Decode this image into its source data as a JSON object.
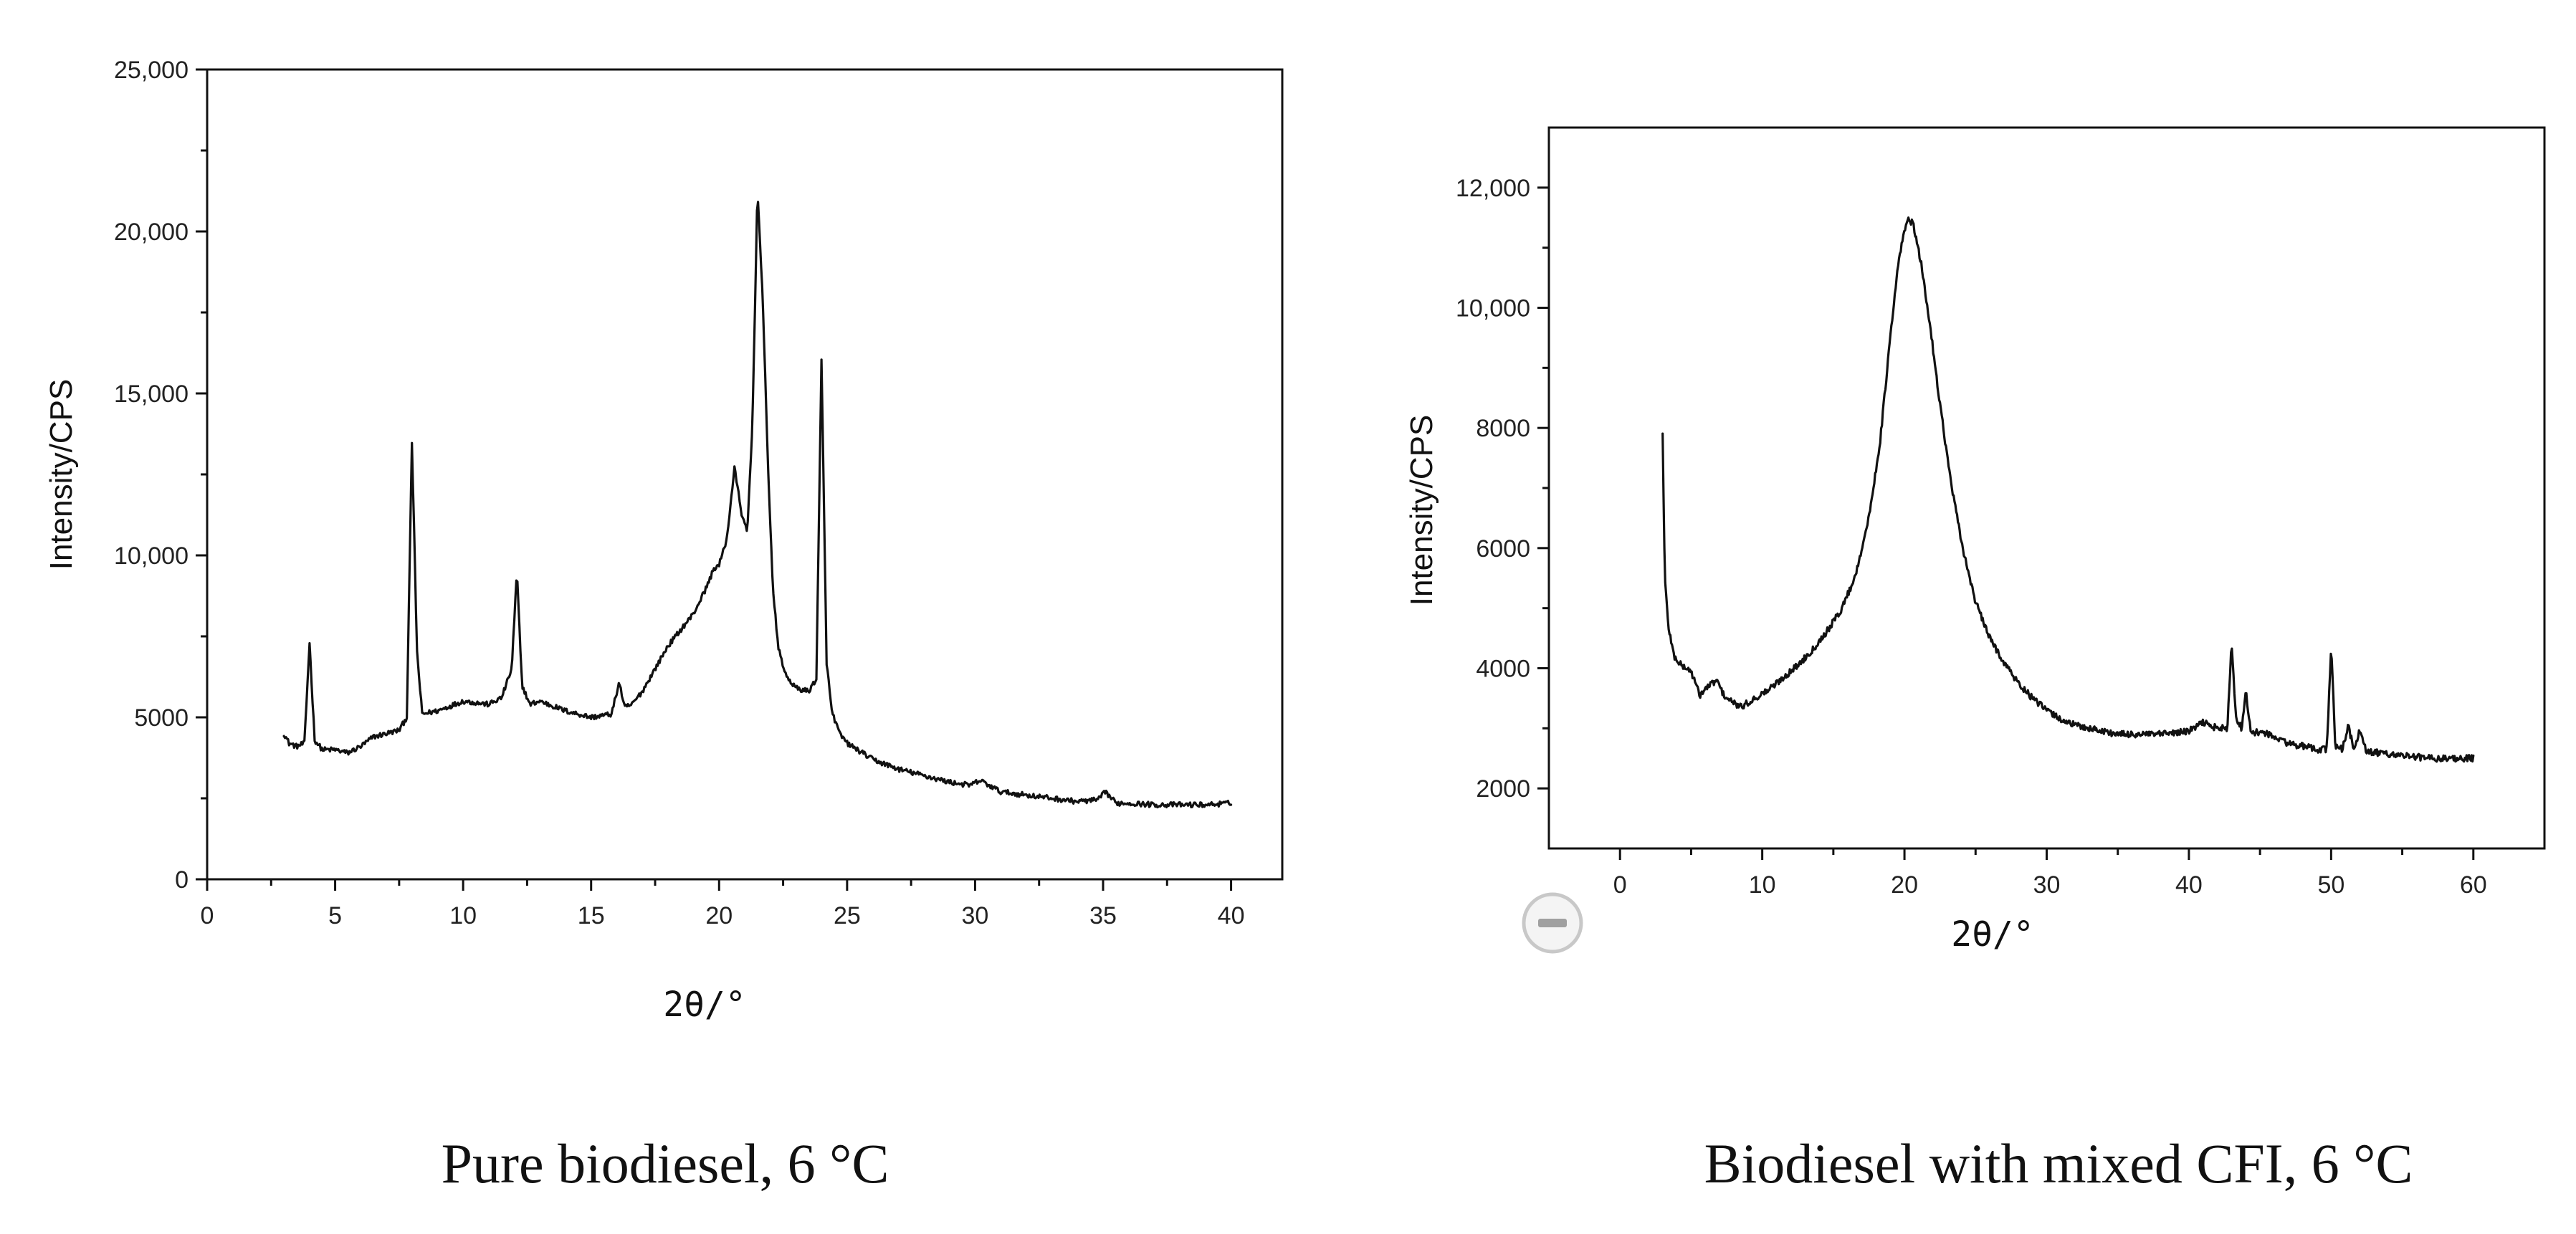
{
  "chart_data": [
    {
      "type": "line",
      "title": "",
      "caption": "Pure biodiesel, 6 °C",
      "xlabel": "2θ/°",
      "ylabel": "Intensity/CPS",
      "xlim": [
        0,
        42
      ],
      "ylim": [
        0,
        25000
      ],
      "xticks": [
        "0",
        "5",
        "10",
        "15",
        "20",
        "25",
        "30",
        "35",
        "40"
      ],
      "xtick_values": [
        0,
        5,
        10,
        15,
        20,
        25,
        30,
        35,
        40
      ],
      "yticks": [
        "0",
        "5000",
        "10,000",
        "15,000",
        "20,000",
        "25,000"
      ],
      "ytick_values": [
        0,
        5000,
        10000,
        15000,
        20000,
        25000
      ],
      "grid": false,
      "legend": "none",
      "series": [
        {
          "name": "Pure biodiesel",
          "x": [
            3,
            3.2,
            3.5,
            3.8,
            4.0,
            4.2,
            4.5,
            5.0,
            5.5,
            6.0,
            6.5,
            7.0,
            7.5,
            7.8,
            8.0,
            8.2,
            8.4,
            9.0,
            10.0,
            11.0,
            11.5,
            11.9,
            12.1,
            12.3,
            12.6,
            13.0,
            14.0,
            15.0,
            15.8,
            16.1,
            16.3,
            16.6,
            17.0,
            17.5,
            18.0,
            18.5,
            19.0,
            19.5,
            19.8,
            20.0,
            20.3,
            20.6,
            20.9,
            21.1,
            21.3,
            21.5,
            21.7,
            21.9,
            22.1,
            22.3,
            22.6,
            23.0,
            23.5,
            23.8,
            24.0,
            24.2,
            24.4,
            24.7,
            25.0,
            26.0,
            27.0,
            28.0,
            29.0,
            29.8,
            30.2,
            31.0,
            32.0,
            33.0,
            34.0,
            34.8,
            35.1,
            35.5,
            36.0,
            37.0,
            38.0,
            39.0,
            40.0
          ],
          "values": [
            4500,
            4200,
            4100,
            4200,
            7300,
            4300,
            4000,
            4000,
            3900,
            4100,
            4400,
            4500,
            4600,
            5000,
            13500,
            7000,
            5100,
            5200,
            5500,
            5400,
            5600,
            6500,
            9500,
            6000,
            5400,
            5500,
            5200,
            5000,
            5100,
            6100,
            5300,
            5400,
            5800,
            6500,
            7200,
            7700,
            8200,
            9000,
            9600,
            9700,
            10500,
            12700,
            11200,
            10700,
            14000,
            21300,
            18000,
            13000,
            9000,
            7200,
            6300,
            5900,
            5800,
            6200,
            16000,
            6700,
            5200,
            4500,
            4200,
            3700,
            3400,
            3200,
            3000,
            2900,
            3050,
            2700,
            2600,
            2500,
            2400,
            2450,
            2700,
            2350,
            2350,
            2300,
            2300,
            2300,
            2350
          ]
        }
      ]
    },
    {
      "type": "line",
      "title": "",
      "caption": "Biodiesel with mixed CFI, 6 °C",
      "xlabel": "2θ/°",
      "ylabel": "Intensity/CPS",
      "xlim": [
        -5,
        65
      ],
      "ylim": [
        1000,
        13000
      ],
      "xticks": [
        "0",
        "10",
        "20",
        "30",
        "40",
        "50",
        "60"
      ],
      "xtick_values": [
        0,
        10,
        20,
        30,
        40,
        50,
        60
      ],
      "yticks": [
        "2000",
        "4000",
        "6000",
        "8000",
        "10,000",
        "12,000"
      ],
      "ytick_values": [
        2000,
        4000,
        6000,
        8000,
        10000,
        12000
      ],
      "grid": false,
      "legend": "none",
      "series": [
        {
          "name": "Biodiesel with mixed CFI",
          "x": [
            3.0,
            3.15,
            3.4,
            3.8,
            4.3,
            5.0,
            5.6,
            6.2,
            6.8,
            7.3,
            7.8,
            8.5,
            9.5,
            10.5,
            11.5,
            12.5,
            13.5,
            14.5,
            15.5,
            16.5,
            17.5,
            18.3,
            19.0,
            19.6,
            20.2,
            20.6,
            21.2,
            21.8,
            22.5,
            23.2,
            24.0,
            25.0,
            26.0,
            27.0,
            28.0,
            29.0,
            30.0,
            31.0,
            32.0,
            33.0,
            34.0,
            35.0,
            36.0,
            38.0,
            40.0,
            41.0,
            42.0,
            42.7,
            43.0,
            43.3,
            43.7,
            44.0,
            44.4,
            45.0,
            46.0,
            47.0,
            48.0,
            49.0,
            49.7,
            50.0,
            50.3,
            50.8,
            51.2,
            51.6,
            52.0,
            52.5,
            53.0,
            55.0,
            57.0,
            59.0,
            60.0
          ],
          "values": [
            7900,
            5500,
            4700,
            4200,
            4050,
            3950,
            3550,
            3700,
            3800,
            3550,
            3450,
            3350,
            3500,
            3650,
            3850,
            4050,
            4300,
            4600,
            4950,
            5500,
            6500,
            7800,
            9500,
            10800,
            11500,
            11400,
            10700,
            9700,
            8400,
            7200,
            6100,
            5100,
            4500,
            4100,
            3750,
            3500,
            3300,
            3150,
            3050,
            3000,
            2950,
            2900,
            2900,
            2900,
            2950,
            3100,
            3000,
            3000,
            4400,
            3200,
            3000,
            3600,
            2900,
            2950,
            2850,
            2750,
            2700,
            2650,
            2650,
            4400,
            2700,
            2650,
            3050,
            2650,
            2950,
            2600,
            2600,
            2550,
            2500,
            2500,
            2500
          ]
        }
      ]
    }
  ]
}
